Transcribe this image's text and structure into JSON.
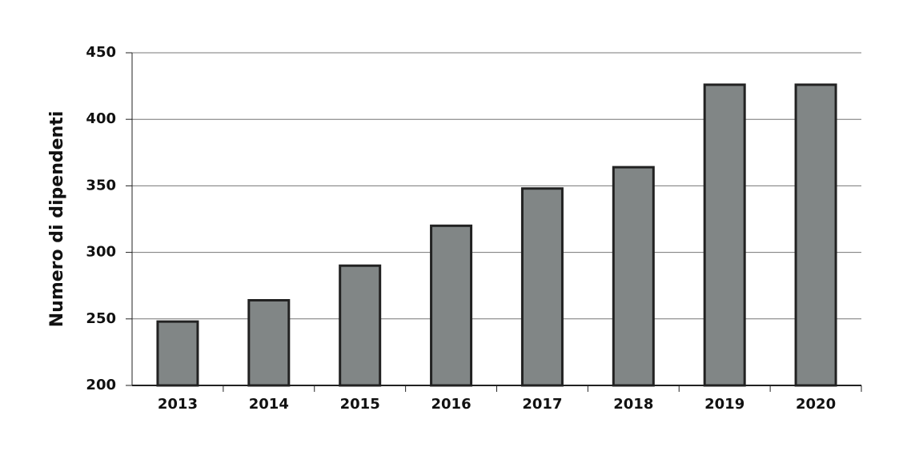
{
  "chart_data": {
    "type": "bar",
    "y_label": "Numero di dipendenti",
    "categories": [
      "2013",
      "2014",
      "2015",
      "2016",
      "2017",
      "2018",
      "2019",
      "2020"
    ],
    "values": [
      248,
      264,
      290,
      320,
      348,
      364,
      426,
      426
    ],
    "color": "#818686",
    "ylim": [
      200,
      450
    ],
    "yticks": [
      200,
      250,
      300,
      350,
      400,
      450
    ],
    "grid": true
  }
}
